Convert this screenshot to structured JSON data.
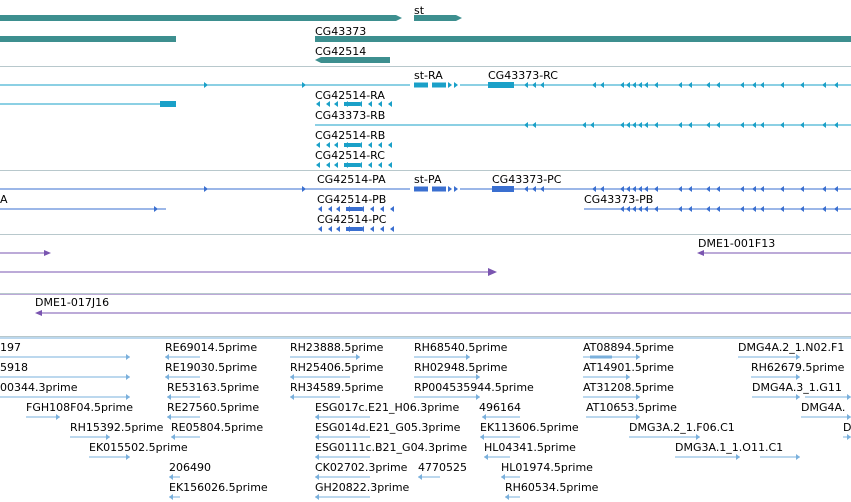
{
  "colors": {
    "genes": "#3d8f8f",
    "transcripts_a": "#1aa0c8",
    "transcripts_b": "#3a6fd0",
    "clones": "#7a55b0",
    "ests": "#7ab0dc",
    "separator": "#b8c8cc"
  },
  "tracks": {
    "genes": [
      {
        "label": "st"
      },
      {
        "label": "CG43373"
      },
      {
        "label": "CG42514"
      }
    ],
    "transcripts_a": [
      {
        "label": "CG42514-RA"
      },
      {
        "label": "st-RA"
      },
      {
        "label": "CG43373-RC"
      },
      {
        "label": "CG43373-RB"
      },
      {
        "label": "CG42514-RB"
      },
      {
        "label": "CG42514-RC"
      }
    ],
    "transcripts_b": [
      {
        "label": "CG42514-PA"
      },
      {
        "label": "st-PA"
      },
      {
        "label": "CG43373-PC"
      },
      {
        "label": "A"
      },
      {
        "label": "CG42514-PB"
      },
      {
        "label": "CG43373-PB"
      },
      {
        "label": "CG42514-PC"
      }
    ],
    "clones": [
      {
        "label": "DME1-001F13"
      },
      {
        "label": "DME1-017J16"
      }
    ],
    "ests": [
      {
        "label": "197"
      },
      {
        "label": "RE69014.5prime"
      },
      {
        "label": "RH23888.5prime"
      },
      {
        "label": "RH68540.5prime"
      },
      {
        "label": "AT08894.5prime"
      },
      {
        "label": "DMG4A.2_1.N02.F1"
      },
      {
        "label": "5918"
      },
      {
        "label": "RE19030.5prime"
      },
      {
        "label": "RH25406.5prime"
      },
      {
        "label": "RH02948.5prime"
      },
      {
        "label": "AT14901.5prime"
      },
      {
        "label": "RH62679.5prime"
      },
      {
        "label": "00344.3prime"
      },
      {
        "label": "RE53163.5prime"
      },
      {
        "label": "RH34589.5prime"
      },
      {
        "label": "RP004535944.5prime"
      },
      {
        "label": "AT31208.5prime"
      },
      {
        "label": "DMG4A.3_1.G11"
      },
      {
        "label": "FGH108F04.5prime"
      },
      {
        "label": "RE27560.5prime"
      },
      {
        "label": "ESG017c.E21_H06.3prime"
      },
      {
        "label": "496164"
      },
      {
        "label": "AT10653.5prime"
      },
      {
        "label": "DMG4A."
      },
      {
        "label": "RH15392.5prime"
      },
      {
        "label": "RE05804.5prime"
      },
      {
        "label": "ESG014d.E21_G05.3prime"
      },
      {
        "label": "EK113606.5prime"
      },
      {
        "label": "DMG3A.2_1.F06.C1"
      },
      {
        "label": "D"
      },
      {
        "label": "EK015502.5prime"
      },
      {
        "label": "ESG0111c.B21_G04.3prime"
      },
      {
        "label": "HL04341.5prime"
      },
      {
        "label": "DMG3A.1_1.O11.C1"
      },
      {
        "label": "206490"
      },
      {
        "label": "CK02702.3prime"
      },
      {
        "label": "4770525"
      },
      {
        "label": "HL01974.5prime"
      },
      {
        "label": "EK156026.5prime"
      },
      {
        "label": "GH20822.3prime"
      },
      {
        "label": "RH60534.5prime"
      }
    ]
  }
}
